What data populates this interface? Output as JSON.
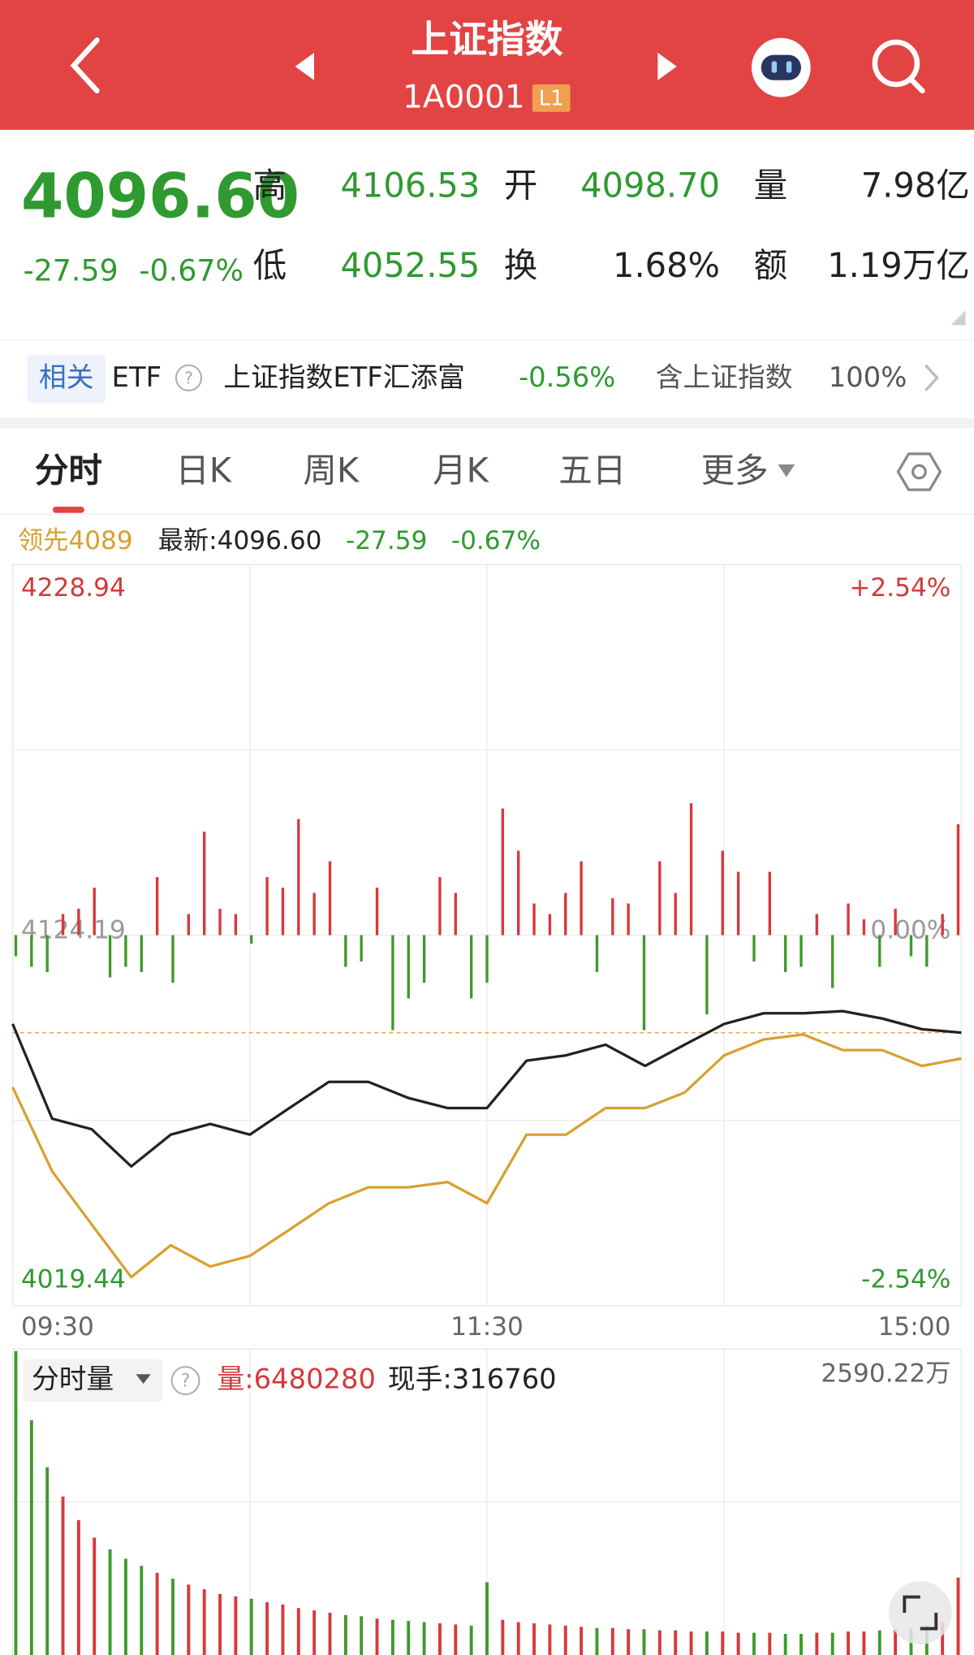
{
  "header": {
    "title": "上证指数",
    "code": "1A0001",
    "level": "L1"
  },
  "quote": {
    "price": "4096.60",
    "change": "-27.59",
    "change_pct": "-0.67%",
    "stats": [
      {
        "label": "高",
        "value": "4106.53"
      },
      {
        "label": "开",
        "value": "4098.70"
      },
      {
        "label": "量",
        "value": "7.98亿"
      },
      {
        "label": "低",
        "value": "4052.55"
      },
      {
        "label": "换",
        "value": "1.68%"
      },
      {
        "label": "额",
        "value": "1.19万亿"
      }
    ]
  },
  "etf": {
    "tag": "相关",
    "label": "ETF",
    "help": "?",
    "name": "上证指数ETF汇添富",
    "change": "-0.56%",
    "weight_label": "含上证指数",
    "weight": "100%"
  },
  "tabs": [
    "分时",
    "日K",
    "周K",
    "月K",
    "五日",
    "更多"
  ],
  "chart_data": [
    {
      "type": "line",
      "latest_change": "-27.59",
      "latest_change_pct": "-0.67%",
      "x": [
        0,
        10,
        20,
        30,
        40,
        50,
        60,
        70,
        80,
        90,
        100,
        110,
        120,
        130,
        140,
        150,
        160,
        170,
        180,
        190,
        200,
        210,
        220,
        230,
        240
      ],
      "series": [
        {
          "name": "领先4089",
          "color": "#d9a030",
          "values": [
            4081.2,
            4057.4,
            4042.4,
            4027.5,
            4036.5,
            4030.5,
            4033.5,
            4040.9,
            4048.4,
            4052.9,
            4052.9,
            4054.4,
            4048.4,
            4067.8,
            4067.8,
            4075.3,
            4075.3,
            4079.7,
            4090.2,
            4094.7,
            4096.1,
            4091.7,
            4091.7,
            4087.2,
            4089.3
          ]
        },
        {
          "name": "最新:4096.60",
          "color": "#222222",
          "values": [
            4099.1,
            4072.3,
            4069.3,
            4058.8,
            4067.8,
            4070.8,
            4067.8,
            4075.3,
            4082.7,
            4082.7,
            4078.2,
            4075.3,
            4075.3,
            4088.7,
            4090.2,
            4093.2,
            4087.2,
            4093.2,
            4099.1,
            4102.1,
            4102.1,
            4102.7,
            4100.6,
            4097.6,
            4096.6
          ]
        }
      ],
      "xlim": [
        0,
        240
      ],
      "xticks": [
        {
          "value": 0,
          "label": "09:30"
        },
        {
          "value": 120,
          "label": "11:30"
        },
        {
          "value": 240,
          "label": "15:00"
        }
      ],
      "ylim": [
        4019.44,
        4228.94
      ],
      "yticks": [
        4019.44,
        4124.19,
        4228.94
      ],
      "y2lim": [
        -2.54,
        2.54
      ],
      "y2ticks": [
        {
          "value": -2.54,
          "label": "-2.54%"
        },
        {
          "value": 0,
          "label": "0.00%"
        },
        {
          "value": 2.54,
          "label": "+2.54%"
        }
      ],
      "grid": true
    },
    {
      "type": "bar",
      "colors": [
        "#d8383c",
        "#3f9a2c"
      ],
      "values": [
        -20,
        -30,
        -35,
        20,
        25,
        45,
        -40,
        -30,
        -35,
        55,
        -45,
        20,
        98,
        25,
        20,
        -8,
        55,
        45,
        110,
        40,
        70,
        -30,
        -25,
        45,
        -90,
        -60,
        -45,
        55,
        40,
        -60,
        -45,
        120,
        80,
        30,
        20,
        40,
        70,
        -35,
        35,
        30,
        -90,
        70,
        40,
        125,
        -75,
        80,
        60,
        -25,
        60,
        -35,
        -30,
        20,
        -50,
        30,
        15,
        -30,
        25,
        -20,
        -30,
        20,
        105
      ]
    },
    {
      "type": "bar",
      "title": "分时量",
      "help": "?",
      "volume_label": "量:6480280",
      "hand_label": "现手:316760",
      "colors": [
        "#d8383c",
        "#3f9a2c"
      ],
      "ylim": [
        0,
        2590.22
      ],
      "yticks": [
        {
          "value": 2590.22,
          "label": "2590.22万"
        }
      ],
      "values": [
        2590.22,
        2000,
        1600,
        1350,
        1150,
        1000,
        900,
        820,
        760,
        700,
        650,
        600,
        560,
        520,
        500,
        480,
        450,
        430,
        400,
        380,
        360,
        340,
        330,
        310,
        300,
        290,
        280,
        270,
        260,
        250,
        620,
        300,
        280,
        270,
        260,
        250,
        240,
        230,
        230,
        220,
        220,
        210,
        210,
        200,
        200,
        200,
        190,
        190,
        190,
        180,
        180,
        190,
        190,
        200,
        200,
        210,
        220,
        230,
        250,
        280,
        660
      ]
    }
  ]
}
